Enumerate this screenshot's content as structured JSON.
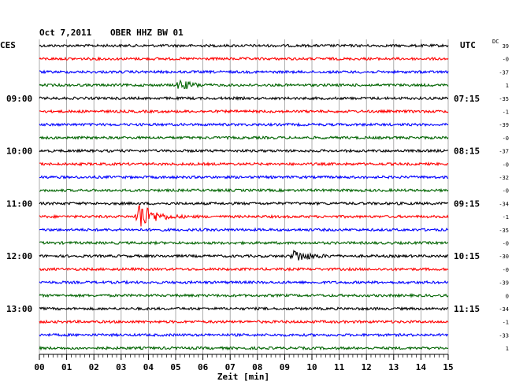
{
  "header": {
    "date": "Oct 7,2011",
    "station": "OBER HHZ BW 01",
    "left_zone": "CES",
    "right_zone": "UTC",
    "dc_label": "DC"
  },
  "colors": {
    "trace_cycle": [
      "#000000",
      "#ff0000",
      "#0000ff",
      "#006400"
    ],
    "grid": "#999999",
    "background": "#ffffff"
  },
  "chart_data": {
    "type": "line",
    "title": "Oct 7,2011   OBER HHZ BW 01",
    "xlabel": "Zeit [min]",
    "ylabel": "",
    "x_range": [
      0,
      15
    ],
    "x_ticks": [
      "00",
      "01",
      "02",
      "03",
      "04",
      "05",
      "06",
      "07",
      "08",
      "09",
      "10",
      "11",
      "12",
      "13",
      "14",
      "15"
    ],
    "trace_count": 24,
    "minutes_per_line": 15,
    "left_time_labels": [
      {
        "line": 4,
        "label": "09:00"
      },
      {
        "line": 8,
        "label": "10:00"
      },
      {
        "line": 12,
        "label": "11:00"
      },
      {
        "line": 16,
        "label": "12:00"
      },
      {
        "line": 20,
        "label": "13:00"
      }
    ],
    "right_time_labels": [
      {
        "line": 4,
        "label": "07:15"
      },
      {
        "line": 8,
        "label": "08:15"
      },
      {
        "line": 12,
        "label": "09:15"
      },
      {
        "line": 16,
        "label": "10:15"
      },
      {
        "line": 20,
        "label": "11:15"
      }
    ],
    "dc_offsets": [
      "39",
      "-0",
      "-37",
      "1",
      "-35",
      "-1",
      "-39",
      "-0",
      "-37",
      "-0",
      "-32",
      "-0",
      "-34",
      "-1",
      "-35",
      "-0",
      "-30",
      "-0",
      "-39",
      "0",
      "-34",
      "-1",
      "-33",
      "1"
    ],
    "events": [
      {
        "line": 3,
        "start_min": 5.0,
        "duration_min": 1.1,
        "amplitude": 0.6
      },
      {
        "line": 13,
        "start_min": 3.5,
        "duration_min": 2.6,
        "amplitude": 2.0
      },
      {
        "line": 16,
        "start_min": 9.2,
        "duration_min": 1.9,
        "amplitude": 0.8
      }
    ],
    "grid": true
  }
}
